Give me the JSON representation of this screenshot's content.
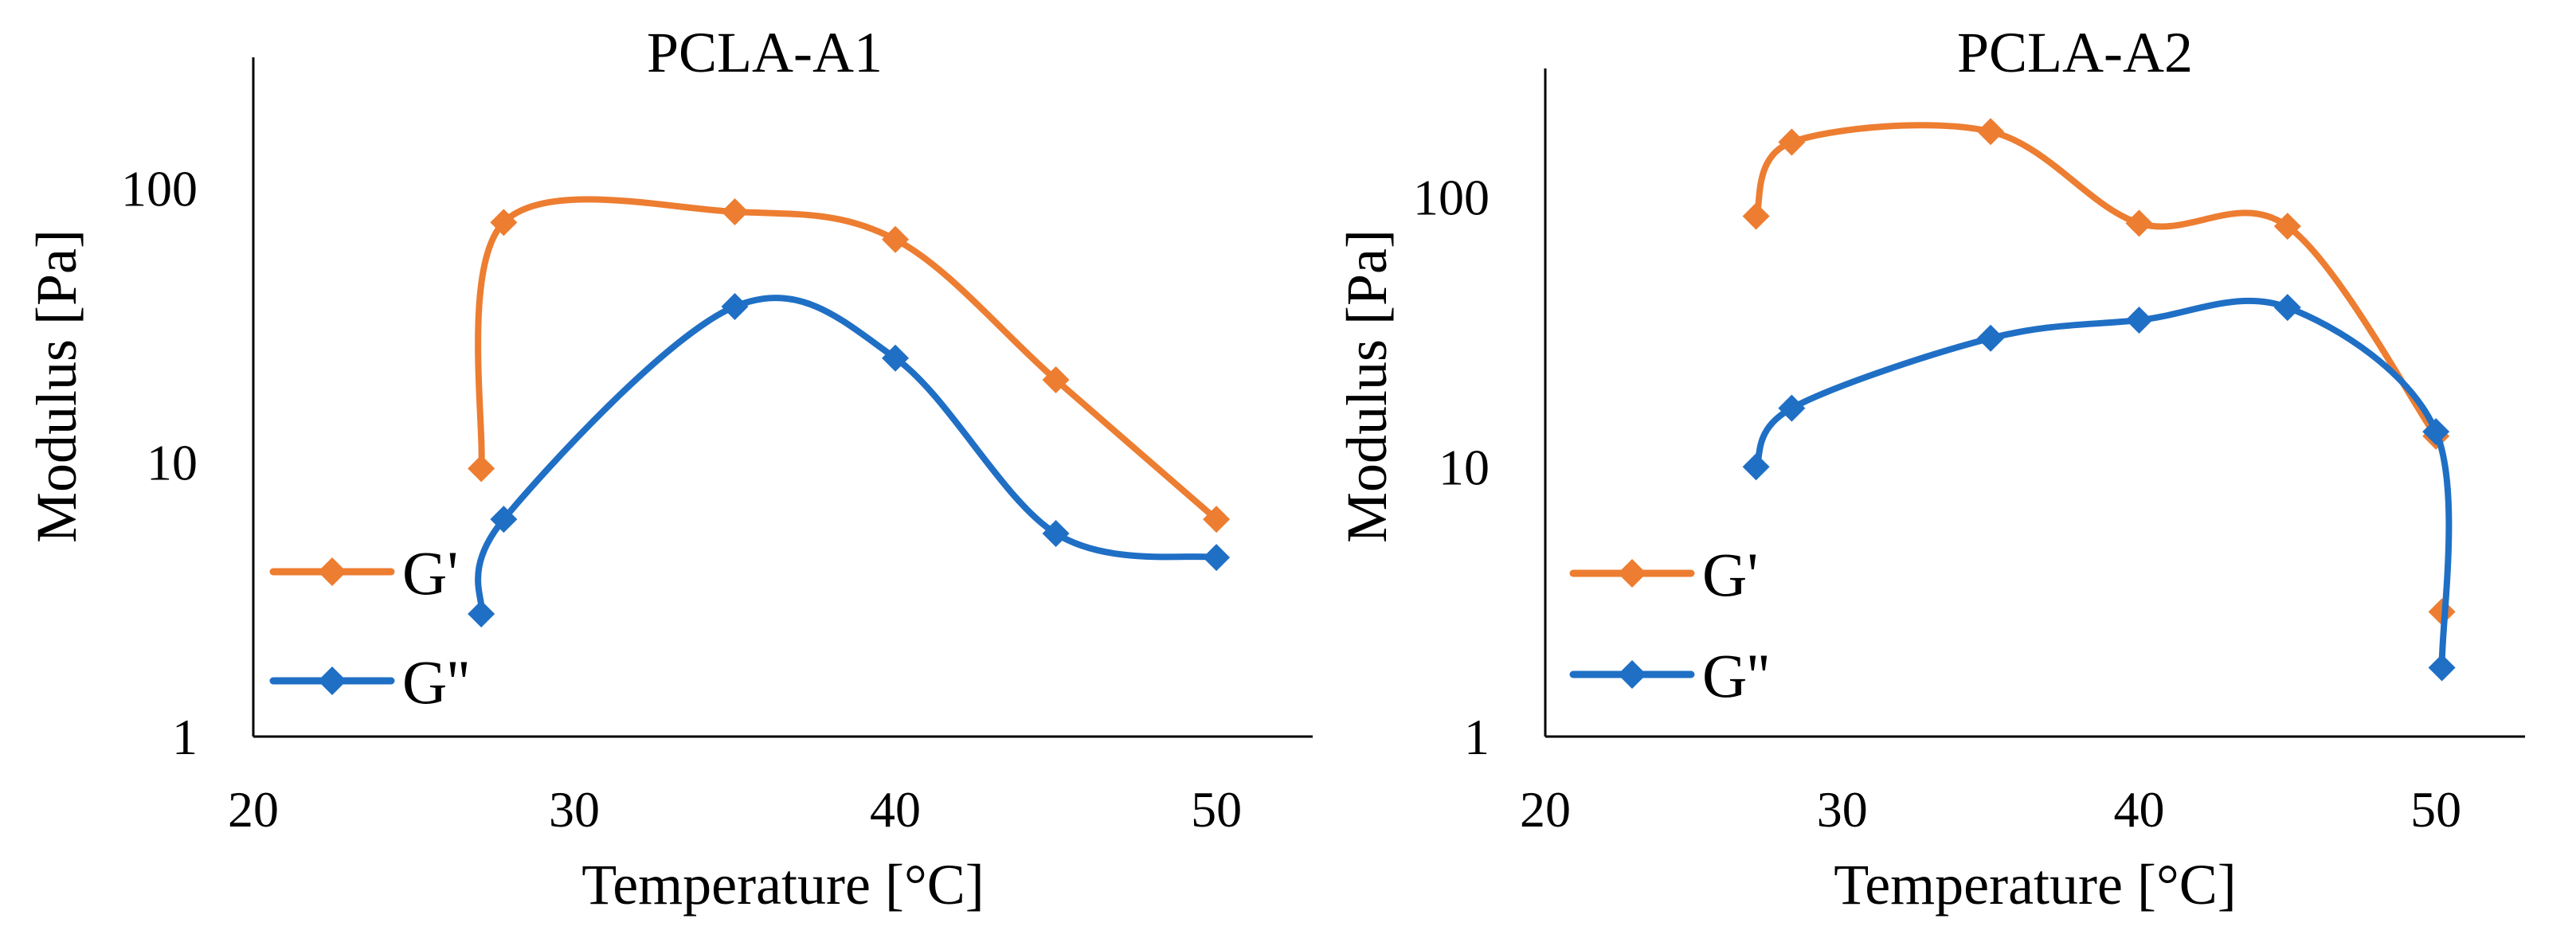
{
  "chart_data": [
    {
      "type": "line",
      "title": "PCLA-A1",
      "xlabel": "Temperature [°C]",
      "ylabel": "Modulus [Pa]",
      "xscale": "linear",
      "yscale": "log",
      "xlim": [
        20,
        53
      ],
      "ylim": [
        1,
        300
      ],
      "xticks": [
        "20",
        "30",
        "40",
        "50"
      ],
      "yticks": [
        "1",
        "10",
        "100"
      ],
      "legend_position": "bottom-left",
      "series": [
        {
          "name": "G'",
          "color": "#ED7D31",
          "x": [
            27.1,
            27.8,
            35,
            40,
            45,
            50
          ],
          "y": [
            9.5,
            75,
            82,
            65,
            20,
            6.2
          ]
        },
        {
          "name": "G''",
          "color": "#1F6FC5",
          "x": [
            27.1,
            27.8,
            35,
            40,
            45,
            50
          ],
          "y": [
            2.8,
            6.2,
            37,
            24,
            5.5,
            4.5
          ]
        }
      ]
    },
    {
      "type": "line",
      "title": "PCLA-A2",
      "xlabel": "Temperature [°C]",
      "ylabel": "Modulus [Pa]",
      "xscale": "linear",
      "yscale": "log",
      "xlim": [
        20,
        53
      ],
      "ylim": [
        1,
        300
      ],
      "xticks": [
        "20",
        "30",
        "40",
        "50"
      ],
      "yticks": [
        "1",
        "10",
        "100"
      ],
      "legend_position": "bottom-left",
      "series": [
        {
          "name": "G'",
          "color": "#ED7D31",
          "x": [
            27.1,
            28.3,
            35,
            40,
            45,
            50,
            50.2
          ],
          "y": [
            85,
            160,
            175,
            80,
            78,
            13,
            2.9
          ]
        },
        {
          "name": "G''",
          "color": "#1F6FC5",
          "x": [
            27.1,
            28.3,
            35,
            40,
            45,
            50,
            50.2
          ],
          "y": [
            10,
            16.5,
            30,
            35,
            39,
            13.5,
            1.8
          ]
        }
      ]
    }
  ]
}
